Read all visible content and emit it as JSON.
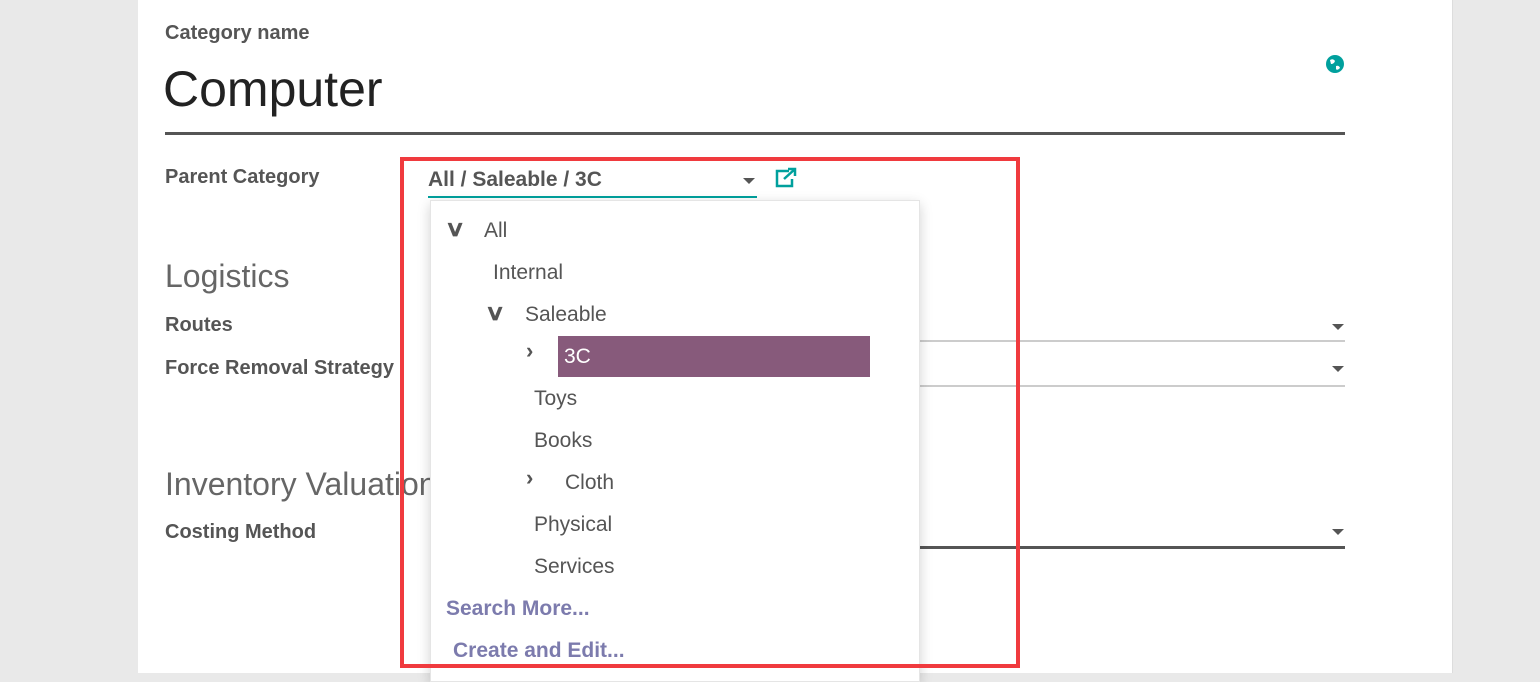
{
  "form": {
    "name_label": "Category name",
    "name_value": "Computer",
    "parent_label": "Parent Category",
    "parent_value": "All / Saleable / 3C",
    "logistics_heading": "Logistics",
    "routes_label": "Routes",
    "removal_label": "Force Removal Strategy",
    "valuation_heading": "Inventory Valuation",
    "costing_label": "Costing Method"
  },
  "dropdown": {
    "items": [
      {
        "label": "All",
        "expanded": true
      },
      {
        "label": "Internal"
      },
      {
        "label": "Saleable",
        "expanded": true
      },
      {
        "label": "3C",
        "collapsed": true,
        "selected": true
      },
      {
        "label": "Toys"
      },
      {
        "label": "Books"
      },
      {
        "label": "Cloth",
        "collapsed": true
      },
      {
        "label": "Physical"
      },
      {
        "label": "Services"
      }
    ],
    "search_more": "Search More...",
    "create_edit": "Create and Edit..."
  },
  "colors": {
    "accent": "#00a09d",
    "highlight": "#875a7b",
    "link": "#7c7bad",
    "annotation": "#f03a3e"
  }
}
